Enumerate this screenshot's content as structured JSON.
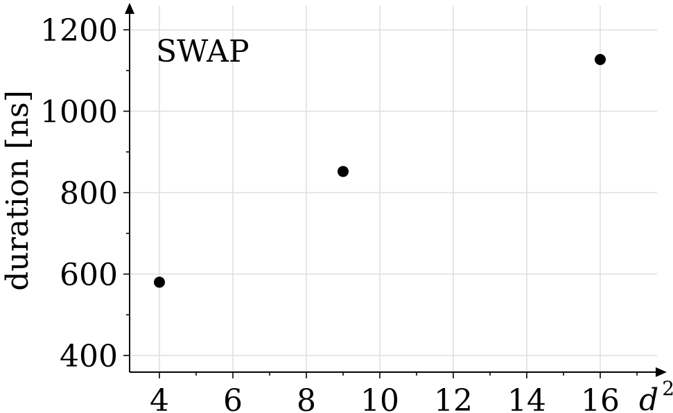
{
  "chart_data": {
    "type": "scatter",
    "title": "",
    "annotation": "SWAP",
    "xlabel": "d",
    "xlabel_superscript": "2",
    "ylabel": "duration [ns]",
    "x_ticks": [
      4,
      6,
      8,
      10,
      12,
      14,
      16
    ],
    "y_ticks": [
      400,
      600,
      800,
      1000,
      1200
    ],
    "xlim": [
      3.2,
      17.6
    ],
    "ylim": [
      360,
      1265
    ],
    "grid": true,
    "series": [
      {
        "x": [
          4,
          9,
          16
        ],
        "y": [
          580,
          852,
          1127
        ]
      }
    ],
    "colors": {
      "marker": "#000000",
      "axis": "#000000",
      "grid": "#dddddd"
    }
  }
}
